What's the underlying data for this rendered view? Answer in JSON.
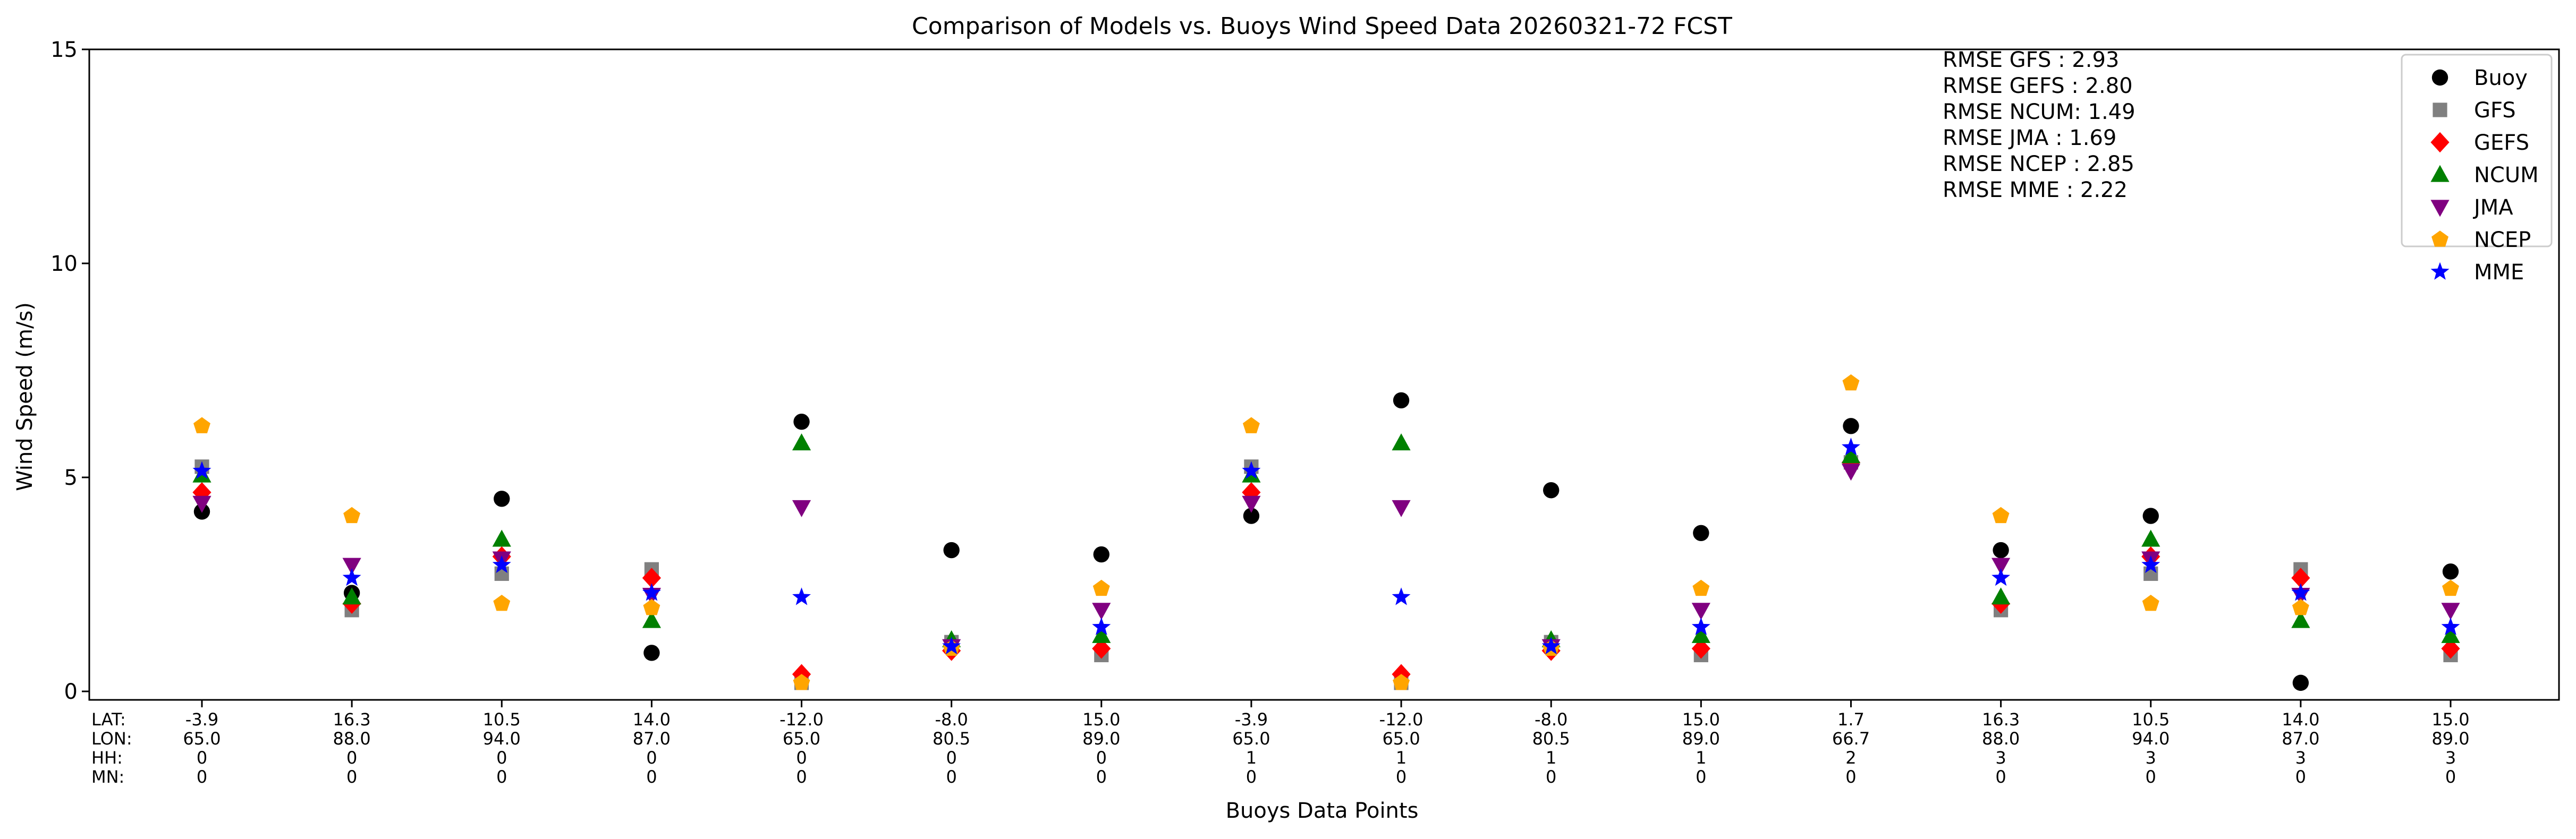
{
  "chart_data": {
    "type": "scatter",
    "title": "Comparison of Models vs. Buoys Wind Speed Data 20260321-72 FCST",
    "xlabel": "Buoys Data Points",
    "ylabel": "Wind Speed (m/s)",
    "ylim": [
      0,
      15
    ],
    "yticks": [
      "0",
      "5",
      "10",
      "15"
    ],
    "grid": false,
    "legend_position": "top-right",
    "row_labels": [
      "LAT:",
      "LON:",
      "HH:",
      "MN:"
    ],
    "x_labels": [
      [
        "-3.9",
        "65.0",
        "0",
        "0"
      ],
      [
        "16.3",
        "88.0",
        "0",
        "0"
      ],
      [
        "10.5",
        "94.0",
        "0",
        "0"
      ],
      [
        "14.0",
        "87.0",
        "0",
        "0"
      ],
      [
        "-12.0",
        "65.0",
        "0",
        "0"
      ],
      [
        "-8.0",
        "80.5",
        "0",
        "0"
      ],
      [
        "15.0",
        "89.0",
        "0",
        "0"
      ],
      [
        "-3.9",
        "65.0",
        "1",
        "0"
      ],
      [
        "-12.0",
        "65.0",
        "1",
        "0"
      ],
      [
        "-8.0",
        "80.5",
        "1",
        "0"
      ],
      [
        "15.0",
        "89.0",
        "1",
        "0"
      ],
      [
        "1.7",
        "66.7",
        "2",
        "0"
      ],
      [
        "16.3",
        "88.0",
        "3",
        "0"
      ],
      [
        "10.5",
        "94.0",
        "3",
        "0"
      ],
      [
        "14.0",
        "87.0",
        "3",
        "0"
      ],
      [
        "15.0",
        "89.0",
        "3",
        "0"
      ]
    ],
    "rmse_lines": [
      "RMSE GFS   : 2.93",
      "RMSE GEFS : 2.80",
      "RMSE NCUM: 1.49",
      "RMSE JMA    : 1.69",
      "RMSE NCEP : 2.85",
      "RMSE MME  : 2.22"
    ],
    "series": [
      {
        "name": "Buoy",
        "marker": "circle",
        "color": "#000000",
        "values": [
          4.2,
          2.3,
          4.5,
          0.9,
          6.3,
          3.3,
          3.2,
          4.1,
          6.8,
          4.7,
          3.7,
          6.2,
          3.3,
          4.1,
          0.2,
          2.8
        ]
      },
      {
        "name": "GFS",
        "marker": "square",
        "color": "#808080",
        "values": [
          5.25,
          1.9,
          2.75,
          2.85,
          0.2,
          1.15,
          0.85,
          5.25,
          0.2,
          1.15,
          0.85,
          5.35,
          1.9,
          2.75,
          2.85,
          0.85
        ]
      },
      {
        "name": "GEFS",
        "marker": "diamond",
        "color": "#ff0000",
        "values": [
          4.65,
          2.05,
          3.15,
          2.65,
          0.4,
          0.95,
          1.0,
          4.65,
          0.4,
          0.95,
          1.0,
          5.35,
          2.05,
          3.15,
          2.65,
          1.0
        ]
      },
      {
        "name": "NCUM",
        "marker": "triangle-up",
        "color": "#008000",
        "values": [
          5.05,
          2.2,
          3.55,
          1.65,
          5.8,
          1.2,
          1.3,
          5.05,
          5.8,
          1.2,
          1.3,
          5.5,
          2.2,
          3.55,
          1.65,
          1.3
        ]
      },
      {
        "name": "JMA",
        "marker": "triangle-down",
        "color": "#800080",
        "values": [
          4.4,
          2.95,
          3.1,
          2.25,
          4.3,
          1.05,
          1.9,
          4.4,
          4.3,
          1.05,
          1.9,
          5.15,
          2.95,
          3.1,
          2.25,
          1.9
        ]
      },
      {
        "name": "NCEP",
        "marker": "pentagon",
        "color": "#ffa500",
        "values": [
          6.2,
          4.1,
          2.05,
          1.95,
          0.2,
          1.0,
          2.4,
          6.2,
          0.2,
          1.0,
          2.4,
          7.2,
          4.1,
          2.05,
          1.95,
          2.4
        ]
      },
      {
        "name": "MME",
        "marker": "star",
        "color": "#0000ff",
        "values": [
          5.15,
          2.65,
          2.95,
          2.3,
          2.2,
          1.05,
          1.5,
          5.15,
          2.2,
          1.05,
          1.5,
          5.7,
          2.65,
          2.95,
          2.3,
          1.5
        ]
      }
    ]
  }
}
